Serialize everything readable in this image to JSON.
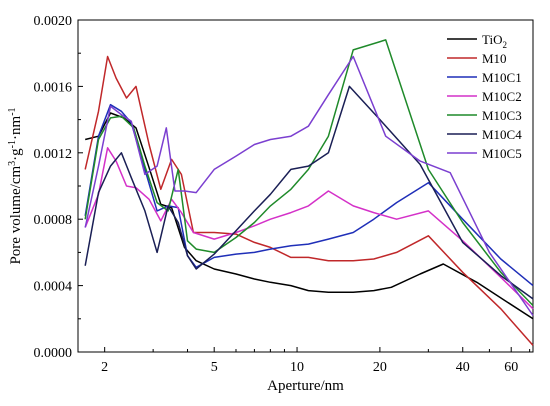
{
  "chart_data": {
    "type": "line",
    "xlabel": "Aperture/nm",
    "ylabel": "Pore volume/cm³·g⁻¹·nm⁻¹",
    "ylabel_parts": [
      "Pore volume/cm",
      "3",
      "·g",
      "-1",
      "·nm",
      "-1"
    ],
    "x_scale": "log",
    "xlim": [
      1.6,
      72
    ],
    "ylim": [
      0,
      0.002
    ],
    "x_ticks": [
      2,
      5,
      10,
      20,
      40,
      60
    ],
    "x_tick_labels": [
      "2",
      "5",
      "10",
      "20",
      "40",
      "60"
    ],
    "y_ticks": [
      0,
      0.0004,
      0.0008,
      0.0012,
      0.0016,
      0.002
    ],
    "y_tick_labels": [
      "0.0000",
      "0.0004",
      "0.0008",
      "0.0012",
      "0.0016",
      "0.0020"
    ],
    "legend_position": "top-right",
    "series": [
      {
        "name": "TiO2",
        "color": "#000000",
        "x": [
          1.7,
          1.9,
          2.1,
          2.35,
          2.6,
          2.9,
          3.2,
          3.5,
          3.9,
          4.3,
          5,
          6,
          7,
          8,
          9.5,
          11,
          13,
          16,
          19,
          22,
          28,
          34,
          45,
          72
        ],
        "y": [
          0.00128,
          0.0013,
          0.00144,
          0.00141,
          0.00135,
          0.00111,
          0.00089,
          0.00087,
          0.00063,
          0.00055,
          0.0005,
          0.00047,
          0.00044,
          0.00042,
          0.0004,
          0.00037,
          0.00036,
          0.00036,
          0.00037,
          0.00039,
          0.00047,
          0.00053,
          0.00042,
          0.0002
        ]
      },
      {
        "name": "M10",
        "color": "#c0282a",
        "x": [
          1.7,
          1.9,
          2.05,
          2.2,
          2.4,
          2.6,
          2.9,
          3.2,
          3.5,
          3.8,
          4.2,
          5,
          6,
          7,
          8,
          9.5,
          11,
          13,
          16,
          19,
          23,
          30,
          40,
          55,
          72
        ],
        "y": [
          0.0011,
          0.00145,
          0.00178,
          0.00165,
          0.00153,
          0.0016,
          0.00125,
          0.00098,
          0.00116,
          0.00107,
          0.00072,
          0.00072,
          0.00071,
          0.00066,
          0.00063,
          0.00057,
          0.00057,
          0.00055,
          0.00055,
          0.00056,
          0.0006,
          0.0007,
          0.00048,
          0.00026,
          4e-05
        ]
      },
      {
        "name": "M10C1",
        "color": "#1f2fb8",
        "x": [
          1.7,
          1.9,
          2.1,
          2.3,
          2.5,
          2.8,
          3.1,
          3.4,
          3.7,
          4.0,
          4.3,
          5,
          6,
          7,
          8,
          9.5,
          11,
          13,
          16,
          19,
          23,
          30,
          40,
          55,
          72
        ],
        "y": [
          0.00082,
          0.0013,
          0.00149,
          0.00145,
          0.00138,
          0.0011,
          0.00085,
          0.00088,
          0.00087,
          0.00058,
          0.00051,
          0.00057,
          0.00059,
          0.0006,
          0.00062,
          0.00064,
          0.00065,
          0.00068,
          0.00072,
          0.0008,
          0.0009,
          0.00102,
          0.0008,
          0.00056,
          0.0004
        ]
      },
      {
        "name": "M10C2",
        "color": "#d431c8",
        "x": [
          1.7,
          1.9,
          2.05,
          2.2,
          2.4,
          2.6,
          2.9,
          3.2,
          3.5,
          3.8,
          4.2,
          5,
          6,
          7,
          8,
          9.5,
          11,
          13,
          16,
          19,
          23,
          30,
          40,
          55,
          72
        ],
        "y": [
          0.00075,
          0.00095,
          0.00123,
          0.00115,
          0.001,
          0.00099,
          0.00092,
          0.00079,
          0.00092,
          0.00084,
          0.00072,
          0.00068,
          0.00072,
          0.00076,
          0.0008,
          0.00084,
          0.00088,
          0.00097,
          0.00088,
          0.00084,
          0.0008,
          0.00085,
          0.00067,
          0.00045,
          0.00026
        ]
      },
      {
        "name": "M10C3",
        "color": "#1f8a2a",
        "x": [
          1.7,
          1.9,
          2.1,
          2.3,
          2.55,
          2.8,
          3.1,
          3.4,
          3.7,
          4.0,
          4.3,
          5,
          6,
          7,
          8,
          9.5,
          11,
          13,
          16,
          21,
          30,
          40,
          55,
          72
        ],
        "y": [
          0.0008,
          0.00128,
          0.00141,
          0.00142,
          0.00135,
          0.00112,
          0.0009,
          0.00085,
          0.0011,
          0.00067,
          0.00062,
          0.0006,
          0.00069,
          0.00078,
          0.00088,
          0.00098,
          0.0011,
          0.0013,
          0.00182,
          0.00188,
          0.0011,
          0.00078,
          0.00048,
          0.00028
        ]
      },
      {
        "name": "M10C4",
        "color": "#1a1f55",
        "x": [
          1.7,
          1.9,
          2.1,
          2.3,
          2.5,
          2.8,
          3.1,
          3.4,
          3.7,
          4.0,
          4.3,
          5,
          6,
          7,
          8,
          9.5,
          11,
          13,
          15.5,
          20,
          28,
          40,
          55,
          72
        ],
        "y": [
          0.00052,
          0.00096,
          0.00112,
          0.0012,
          0.00105,
          0.00085,
          0.0006,
          0.00088,
          0.00078,
          0.00058,
          0.0005,
          0.00059,
          0.00073,
          0.00085,
          0.00095,
          0.0011,
          0.00112,
          0.0012,
          0.0016,
          0.0014,
          0.00113,
          0.00066,
          0.00046,
          0.00032
        ]
      },
      {
        "name": "M10C5",
        "color": "#7b3fd0",
        "x": [
          1.7,
          1.9,
          2.1,
          2.3,
          2.5,
          2.8,
          3.1,
          3.35,
          3.6,
          3.9,
          4.3,
          5,
          6,
          7,
          8,
          9.5,
          11,
          13,
          16,
          21,
          28,
          36,
          50,
          72
        ],
        "y": [
          0.00075,
          0.00112,
          0.00148,
          0.00143,
          0.00139,
          0.00107,
          0.00112,
          0.00135,
          0.00097,
          0.00097,
          0.00096,
          0.0011,
          0.00118,
          0.00125,
          0.00128,
          0.0013,
          0.00136,
          0.00155,
          0.00178,
          0.0013,
          0.00115,
          0.00108,
          0.0006,
          0.00022
        ]
      }
    ]
  }
}
